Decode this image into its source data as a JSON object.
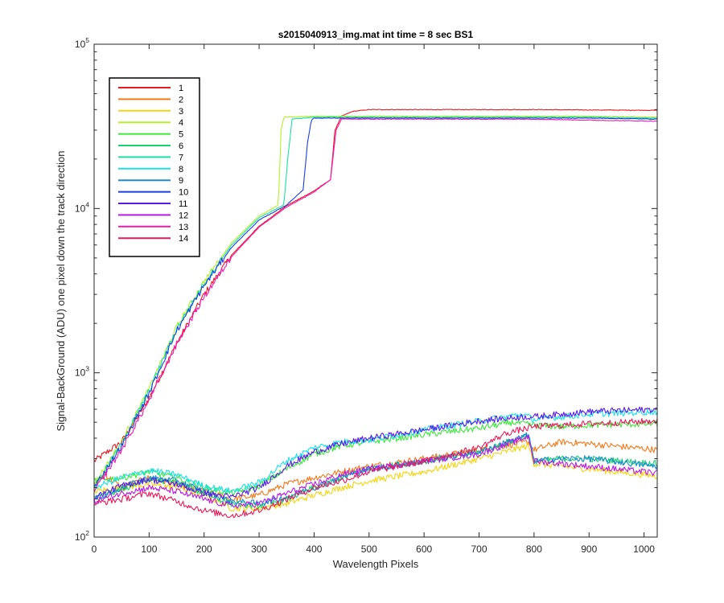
{
  "chart_data": {
    "type": "line",
    "title": "s2015040913_img.mat int time = 8 sec   BS1",
    "xlabel": "Wavelength Pixels",
    "ylabel": "Signal-BackGround (ADU) one pixel down the track direction",
    "xlim": [
      0,
      1024
    ],
    "ylim": [
      100,
      100000
    ],
    "yscale": "log",
    "xticks": [
      "0",
      "100",
      "200",
      "300",
      "400",
      "500",
      "600",
      "700",
      "800",
      "900",
      "1000"
    ],
    "yticks": [
      {
        "value": 100,
        "base": "10",
        "exp": "2"
      },
      {
        "value": 1000,
        "base": "10",
        "exp": "3"
      },
      {
        "value": 10000,
        "base": "10",
        "exp": "4"
      },
      {
        "value": 100000,
        "base": "10",
        "exp": "5"
      }
    ],
    "grid": false,
    "legend_position": "top-left",
    "series": [
      {
        "name": "1",
        "color": "#e6191e",
        "x": [
          0,
          50,
          100,
          150,
          200,
          250,
          300,
          350,
          400,
          430,
          438,
          450,
          470,
          500,
          600,
          700,
          800,
          900,
          1024
        ],
        "y": [
          290,
          380,
          700,
          1500,
          3000,
          5200,
          7800,
          10400,
          12800,
          15000,
          30000,
          36500,
          39000,
          40000,
          40000,
          40000,
          40000,
          39800,
          39600
        ]
      },
      {
        "name": "2",
        "color": "#f27a1a",
        "x": [
          0,
          20,
          50,
          100,
          150,
          200,
          250,
          300,
          350,
          400,
          450,
          500,
          600,
          700,
          790,
          800,
          850,
          900,
          1024
        ],
        "y": [
          210,
          240,
          200,
          230,
          210,
          190,
          170,
          180,
          210,
          230,
          250,
          270,
          300,
          340,
          380,
          340,
          380,
          370,
          340
        ]
      },
      {
        "name": "3",
        "color": "#f5d410",
        "x": [
          0,
          50,
          100,
          150,
          200,
          250,
          300,
          350,
          400,
          450,
          500,
          600,
          700,
          790,
          800,
          850,
          900,
          1024
        ],
        "y": [
          190,
          200,
          210,
          200,
          180,
          150,
          150,
          160,
          180,
          200,
          220,
          250,
          300,
          360,
          280,
          270,
          260,
          235
        ]
      },
      {
        "name": "4",
        "color": "#b4f22b",
        "x": [
          0,
          50,
          100,
          150,
          200,
          250,
          300,
          335,
          340,
          345,
          400,
          500,
          600,
          700,
          800,
          900,
          1024
        ],
        "y": [
          210,
          380,
          800,
          1900,
          3600,
          6200,
          9000,
          10500,
          30000,
          36000,
          36500,
          36500,
          36500,
          36500,
          36500,
          36500,
          36000
        ]
      },
      {
        "name": "5",
        "color": "#3de83d",
        "x": [
          0,
          50,
          100,
          150,
          200,
          250,
          300,
          350,
          400,
          450,
          500,
          600,
          700,
          760,
          800,
          850,
          900,
          1024
        ],
        "y": [
          220,
          230,
          250,
          230,
          200,
          185,
          205,
          260,
          320,
          360,
          380,
          420,
          460,
          500,
          480,
          470,
          480,
          490
        ]
      },
      {
        "name": "6",
        "color": "#19d46a",
        "x": [
          0,
          50,
          100,
          150,
          200,
          250,
          300,
          350,
          400,
          450,
          500,
          600,
          700,
          790,
          800,
          850,
          900,
          1024
        ],
        "y": [
          170,
          195,
          225,
          215,
          185,
          160,
          155,
          170,
          200,
          230,
          260,
          290,
          330,
          420,
          290,
          300,
          300,
          280
        ]
      },
      {
        "name": "7",
        "color": "#1ae0a0",
        "x": [
          0,
          50,
          100,
          150,
          200,
          250,
          300,
          345,
          352,
          360,
          400,
          500,
          600,
          700,
          800,
          900,
          1024
        ],
        "y": [
          200,
          370,
          780,
          1850,
          3500,
          6000,
          8800,
          10500,
          20000,
          35000,
          36000,
          36000,
          36000,
          36000,
          36000,
          36000,
          35500
        ]
      },
      {
        "name": "8",
        "color": "#1ae0e8",
        "x": [
          0,
          50,
          100,
          150,
          200,
          250,
          300,
          350,
          400,
          450,
          500,
          600,
          700,
          780,
          800,
          850,
          900,
          1024
        ],
        "y": [
          200,
          230,
          255,
          240,
          205,
          190,
          215,
          290,
          350,
          380,
          390,
          450,
          510,
          560,
          520,
          540,
          560,
          580
        ]
      },
      {
        "name": "9",
        "color": "#1a8ccf",
        "x": [
          0,
          50,
          100,
          150,
          200,
          250,
          300,
          350,
          400,
          450,
          500,
          600,
          700,
          790,
          800,
          850,
          900,
          1024
        ],
        "y": [
          170,
          200,
          230,
          220,
          190,
          165,
          160,
          175,
          200,
          230,
          260,
          290,
          330,
          420,
          290,
          300,
          300,
          270
        ]
      },
      {
        "name": "10",
        "color": "#1a3fe0",
        "x": [
          0,
          50,
          100,
          150,
          200,
          250,
          300,
          350,
          380,
          388,
          395,
          400,
          500,
          600,
          700,
          800,
          900,
          1024
        ],
        "y": [
          200,
          360,
          750,
          1800,
          3400,
          5800,
          8500,
          10500,
          13000,
          25000,
          34500,
          35500,
          35500,
          35500,
          35500,
          35500,
          35500,
          35000
        ]
      },
      {
        "name": "11",
        "color": "#5a1ae6",
        "x": [
          0,
          50,
          100,
          150,
          200,
          250,
          300,
          350,
          400,
          450,
          500,
          600,
          700,
          780,
          800,
          850,
          900,
          1024
        ],
        "y": [
          175,
          205,
          225,
          210,
          185,
          175,
          200,
          270,
          330,
          370,
          400,
          450,
          510,
          540,
          540,
          560,
          580,
          600
        ]
      },
      {
        "name": "12",
        "color": "#b81ae6",
        "x": [
          0,
          50,
          100,
          150,
          200,
          250,
          300,
          350,
          400,
          450,
          500,
          600,
          700,
          790,
          800,
          850,
          900,
          1024
        ],
        "y": [
          165,
          185,
          200,
          190,
          170,
          155,
          160,
          185,
          210,
          240,
          260,
          290,
          320,
          410,
          290,
          280,
          270,
          245
        ]
      },
      {
        "name": "13",
        "color": "#f01ab4",
        "x": [
          0,
          50,
          100,
          150,
          200,
          250,
          300,
          350,
          400,
          430,
          440,
          450,
          500,
          600,
          700,
          800,
          900,
          1024
        ],
        "y": [
          190,
          340,
          680,
          1500,
          2900,
          5100,
          7700,
          10200,
          12600,
          15000,
          30000,
          35000,
          35000,
          35000,
          35000,
          35000,
          34500,
          34000
        ]
      },
      {
        "name": "14",
        "color": "#e61a5a",
        "x": [
          0,
          50,
          100,
          150,
          200,
          250,
          300,
          350,
          400,
          450,
          500,
          600,
          700,
          750,
          800,
          850,
          900,
          1024
        ],
        "y": [
          160,
          170,
          185,
          165,
          145,
          135,
          145,
          170,
          200,
          220,
          250,
          290,
          350,
          430,
          470,
          480,
          490,
          510
        ]
      }
    ]
  }
}
